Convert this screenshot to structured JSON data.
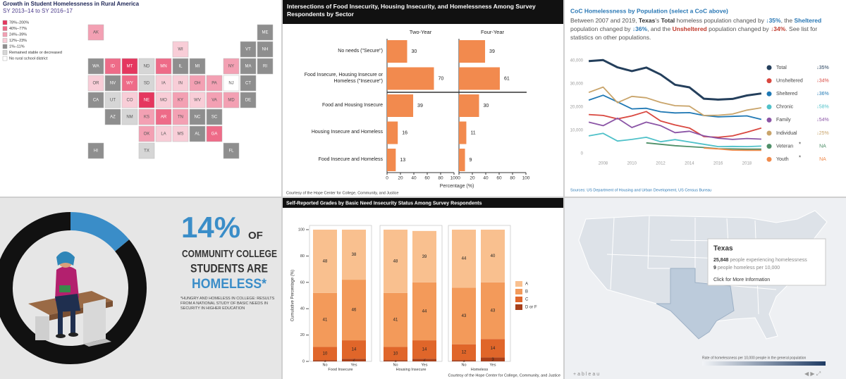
{
  "chart_data": [
    {
      "type": "map",
      "title": "Growth in Student Homelessness in Rural America",
      "subtitle": "SY 2013–14 to SY 2016–17",
      "legend": [
        "78%–200%",
        "40%–77%",
        "24%–39%",
        "12%–23%",
        "1%–11%",
        "Remained stable or decreased",
        "No rural school district"
      ],
      "colors": [
        "#e5375f",
        "#ee6b88",
        "#f3a0b3",
        "#f8cdd7",
        "#8e8e8e",
        "#d6d6d6",
        "#ffffff"
      ],
      "states": [
        {
          "abbr": "AK",
          "class": 2
        },
        {
          "abbr": "ME",
          "class": 4
        },
        {
          "abbr": "WI",
          "class": 3
        },
        {
          "abbr": "VT",
          "class": 4
        },
        {
          "abbr": "NH",
          "class": 4
        },
        {
          "abbr": "WA",
          "class": 4
        },
        {
          "abbr": "ID",
          "class": 1
        },
        {
          "abbr": "MT",
          "class": 0
        },
        {
          "abbr": "ND",
          "class": 5
        },
        {
          "abbr": "MN",
          "class": 1
        },
        {
          "abbr": "IL",
          "class": 4
        },
        {
          "abbr": "MI",
          "class": 4
        },
        {
          "abbr": "NY",
          "class": 2
        },
        {
          "abbr": "MA",
          "class": 4
        },
        {
          "abbr": "RI",
          "class": 4
        },
        {
          "abbr": "OR",
          "class": 3
        },
        {
          "abbr": "NV",
          "class": 4
        },
        {
          "abbr": "WY",
          "class": 1
        },
        {
          "abbr": "SD",
          "class": 5
        },
        {
          "abbr": "IA",
          "class": 3
        },
        {
          "abbr": "IN",
          "class": 3
        },
        {
          "abbr": "OH",
          "class": 2
        },
        {
          "abbr": "PA",
          "class": 2
        },
        {
          "abbr": "NJ",
          "class": 6
        },
        {
          "abbr": "CT",
          "class": 4
        },
        {
          "abbr": "CA",
          "class": 4
        },
        {
          "abbr": "UT",
          "class": 5
        },
        {
          "abbr": "CO",
          "class": 3
        },
        {
          "abbr": "NE",
          "class": 0
        },
        {
          "abbr": "MO",
          "class": 3
        },
        {
          "abbr": "KY",
          "class": 2
        },
        {
          "abbr": "WV",
          "class": 3
        },
        {
          "abbr": "VA",
          "class": 2
        },
        {
          "abbr": "MD",
          "class": 2
        },
        {
          "abbr": "DE",
          "class": 4
        },
        {
          "abbr": "AZ",
          "class": 4
        },
        {
          "abbr": "NM",
          "class": 5
        },
        {
          "abbr": "KS",
          "class": 2
        },
        {
          "abbr": "AR",
          "class": 1
        },
        {
          "abbr": "TN",
          "class": 2
        },
        {
          "abbr": "NC",
          "class": 4
        },
        {
          "abbr": "SC",
          "class": 4
        },
        {
          "abbr": "OK",
          "class": 2
        },
        {
          "abbr": "LA",
          "class": 3
        },
        {
          "abbr": "MS",
          "class": 3
        },
        {
          "abbr": "AL",
          "class": 4
        },
        {
          "abbr": "GA",
          "class": 1
        },
        {
          "abbr": "HI",
          "class": 4
        },
        {
          "abbr": "TX",
          "class": 5
        },
        {
          "abbr": "FL",
          "class": 4
        }
      ]
    },
    {
      "type": "bar",
      "orientation": "horizontal",
      "title": "Intersections of Food Insecurity, Housing Insecurity, and Homelessness Among Survey Respondents by Sector",
      "categories": [
        "No needs (\"Secure\")",
        "Food Insecure, Housing Insecure or Homeless (\"Insecure\")",
        "Food and Housing Insecure",
        "Housing Insecure and Homeless",
        "Food Insecure and Homeless"
      ],
      "series": [
        {
          "name": "Two-Year",
          "color": "#f28a4e",
          "values": [
            30,
            70,
            39,
            16,
            13
          ]
        },
        {
          "name": "Four-Year",
          "color": "#f28a4e",
          "values": [
            39,
            61,
            30,
            11,
            9
          ]
        }
      ],
      "xlim": [
        0,
        100
      ],
      "xticks": [
        0,
        20,
        40,
        60,
        80,
        100
      ],
      "xlabel": "Percentage (%)",
      "source": "Courtesy of the Hope Center for College, Community, and Justice"
    },
    {
      "type": "line",
      "title": "CoC Homelessness by Population (select a CoC above)",
      "description": [
        {
          "text": "Between 2007 and 2019, ",
          "style": "plain"
        },
        {
          "text": "Texas",
          "style": "bold"
        },
        {
          "text": "'s ",
          "style": "plain"
        },
        {
          "text": "Total",
          "style": "bold"
        },
        {
          "text": " homeless population changed by ",
          "style": "plain"
        },
        {
          "text": "↓35%",
          "style": "bold-blue"
        },
        {
          "text": ", the ",
          "style": "plain"
        },
        {
          "text": "Sheltered",
          "style": "bold-blue"
        },
        {
          "text": " population changed by ",
          "style": "plain"
        },
        {
          "text": "↓36%",
          "style": "bold-blue"
        },
        {
          "text": ",  and  the ",
          "style": "plain"
        },
        {
          "text": "Unsheltered",
          "style": "bold-red"
        },
        {
          "text": " population changed by ",
          "style": "plain"
        },
        {
          "text": "↓34%",
          "style": "bold-red"
        },
        {
          "text": ". See list for statistics on other populations.",
          "style": "plain"
        }
      ],
      "x": [
        2007,
        2008,
        2009,
        2010,
        2011,
        2012,
        2013,
        2014,
        2015,
        2016,
        2017,
        2018,
        2019
      ],
      "xlim": [
        2006.8,
        2019.3
      ],
      "xticks": [
        2008,
        2010,
        2012,
        2014,
        2016,
        2018
      ],
      "ylim": [
        0,
        42000
      ],
      "yticks": [
        0,
        {
          "value": 10000,
          "label": "10,000"
        },
        {
          "value": 20000,
          "label": "20,000"
        },
        {
          "value": 30000,
          "label": "30,000"
        },
        {
          "value": 40000,
          "label": "40,000"
        }
      ],
      "grid": false,
      "series": [
        {
          "name": "Total",
          "color": "#243f5c",
          "change": "↓35%",
          "values": [
            39800,
            40200,
            37100,
            35500,
            37000,
            34000,
            29600,
            28500,
            23600,
            23200,
            23500,
            25000,
            25848
          ]
        },
        {
          "name": "Unsheltered",
          "color": "#d9473f",
          "change": "↓34%",
          "values": [
            16800,
            16400,
            14900,
            16200,
            18100,
            14000,
            12300,
            11000,
            7300,
            7000,
            7600,
            9200,
            11000
          ]
        },
        {
          "name": "Sheltered",
          "color": "#1f78b4",
          "change": "↓36%",
          "values": [
            23000,
            25100,
            22200,
            19200,
            19500,
            18000,
            17500,
            17600,
            16400,
            15800,
            16000,
            16200,
            14700
          ]
        },
        {
          "name": "Chronic",
          "color": "#4fc1c9",
          "change": "↓58%",
          "values": [
            7600,
            8700,
            5400,
            6100,
            7000,
            5100,
            6000,
            5000,
            4000,
            3000,
            3100,
            3000,
            3200
          ]
        },
        {
          "name": "Family",
          "color": "#8b55a6",
          "change": "↓54%",
          "values": [
            13500,
            12000,
            15200,
            11200,
            13500,
            12000,
            9000,
            9600,
            7600,
            6600,
            6100,
            6500,
            6200
          ]
        },
        {
          "name": "Individual",
          "color": "#c9a46a",
          "change": "↓25%",
          "values": [
            26300,
            28600,
            21900,
            24600,
            24000,
            22000,
            20600,
            20400,
            16400,
            16500,
            17000,
            18700,
            19700
          ]
        },
        {
          "name": "Veteran",
          "color": "#4e8f68",
          "change": "NA",
          "note": "*",
          "values": [
            null,
            null,
            null,
            null,
            4600,
            4000,
            3400,
            3000,
            2600,
            2100,
            2000,
            1900,
            1900
          ]
        },
        {
          "name": "Youth",
          "color": "#f08a4b",
          "change": "NA",
          "note": "*",
          "values": [
            null,
            null,
            null,
            null,
            null,
            null,
            null,
            null,
            2400,
            2000,
            1500,
            1400,
            1400
          ]
        }
      ],
      "source": "Sources: US Department of Housing and Urban Development, US Census Bureau"
    },
    {
      "type": "pie",
      "values": [
        14,
        86
      ],
      "value_labels": [
        "14%",
        null
      ],
      "colors": [
        "#3a8dc8",
        "#111111"
      ],
      "of": "OF",
      "line1": "COMMUNITY COLLEGE",
      "line2": "STUDENTS ARE",
      "line3": "HOMELESS*",
      "footnote": "*HUNGRY AND HOMELESS IN COLLEGE: RESULTS FROM A NATIONAL STUDY OF BASIC NEEDS IN SECURITY IN HIGHER EDUCATION"
    },
    {
      "type": "stacked_bar",
      "title": "Self-Reported Grades by Basic Need Insecurity Status Among Survey Respondents",
      "groups": [
        "Food Insecure",
        "Housing Insecure",
        "Homeless"
      ],
      "categories": [
        "No",
        "Yes",
        "No",
        "Yes",
        "No",
        "Yes"
      ],
      "series": [
        {
          "name": "D or F",
          "color": "#a8401a",
          "values": [
            1,
            2,
            1,
            2,
            1,
            3
          ]
        },
        {
          "name": "C",
          "color": "#e0662a",
          "values": [
            10,
            14,
            10,
            14,
            12,
            14
          ]
        },
        {
          "name": "B",
          "color": "#f39a5a",
          "values": [
            41,
            46,
            41,
            44,
            43,
            43
          ]
        },
        {
          "name": "A",
          "color": "#f9c08f",
          "values": [
            48,
            38,
            48,
            39,
            44,
            40
          ]
        }
      ],
      "ylim": [
        0,
        100
      ],
      "yticks": [
        0,
        20,
        40,
        60,
        80,
        100
      ],
      "ylabel": "Cumulative Percentage (%)",
      "source": "Courtesy of the Hope Center for College, Community, and Justice"
    }
  ],
  "tableau": {
    "tooltip": {
      "title": "Texas",
      "count": "25,848",
      "count_text": " people experiencing homelessness",
      "rate": "9",
      "rate_text": " people homeless per 10,000",
      "link": "Click for More Information"
    },
    "legend_title": "Rate of homelessness per 10,000 people in the general population",
    "logo": "+ableau"
  }
}
